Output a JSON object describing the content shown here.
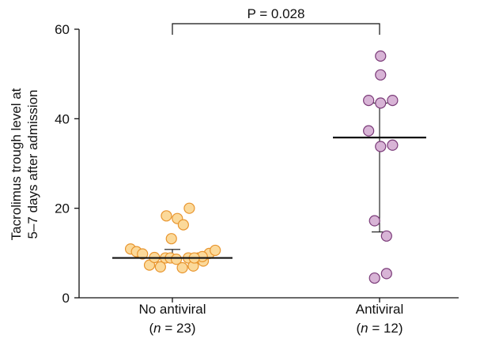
{
  "chart_data": {
    "type": "scatter",
    "title": "",
    "ylabel_lines": [
      "Tacrolimus trough level at",
      "5–7 days after admission"
    ],
    "ylim": [
      0,
      60
    ],
    "yticks": [
      "0",
      "20",
      "40",
      "60"
    ],
    "categories": [
      {
        "label": "No antiviral",
        "n_prefix": "(",
        "n_symbol": "n",
        "n_suffix": " = 23)"
      },
      {
        "label": "Antiviral",
        "n_prefix": "(",
        "n_symbol": "n",
        "n_suffix": " = 12)"
      }
    ],
    "series": [
      {
        "category_index": 0,
        "color": "#fbd99a",
        "edge_color": "#e8952e",
        "mean": 8.9,
        "error_upper": 10.8,
        "error_lower": 8.9,
        "values": [
          10.9,
          10.3,
          9.8,
          7.3,
          9.0,
          6.9,
          8.9,
          13.2,
          8.9,
          18.3,
          8.6,
          17.7,
          6.7,
          16.3,
          8.9,
          7.1,
          8.9,
          20.0,
          8.2,
          9.9,
          10.6,
          9.2,
          8.9
        ],
        "offsets": [
          -0.42,
          -0.36,
          -0.3,
          -0.23,
          -0.18,
          -0.12,
          -0.07,
          -0.01,
          -0.02,
          -0.06,
          0.04,
          0.05,
          0.1,
          0.11,
          0.16,
          0.21,
          0.26,
          0.17,
          0.31,
          0.37,
          0.43,
          0.3,
          0.22
        ]
      },
      {
        "category_index": 1,
        "color": "#d8b4d6",
        "edge_color": "#7a3a78",
        "mean": 35.8,
        "error_upper": 43.5,
        "error_lower": 14.7,
        "values": [
          54.0,
          49.8,
          44.1,
          43.5,
          44.1,
          37.3,
          33.8,
          34.1,
          17.2,
          13.8,
          4.4,
          5.4
        ],
        "offsets": [
          0.01,
          0.01,
          -0.11,
          0.01,
          0.13,
          -0.11,
          0.01,
          0.13,
          -0.05,
          0.07,
          -0.05,
          0.07
        ]
      }
    ],
    "comparison": {
      "text": "P = 0.028",
      "from": 0,
      "to": 1,
      "level": 61
    }
  }
}
